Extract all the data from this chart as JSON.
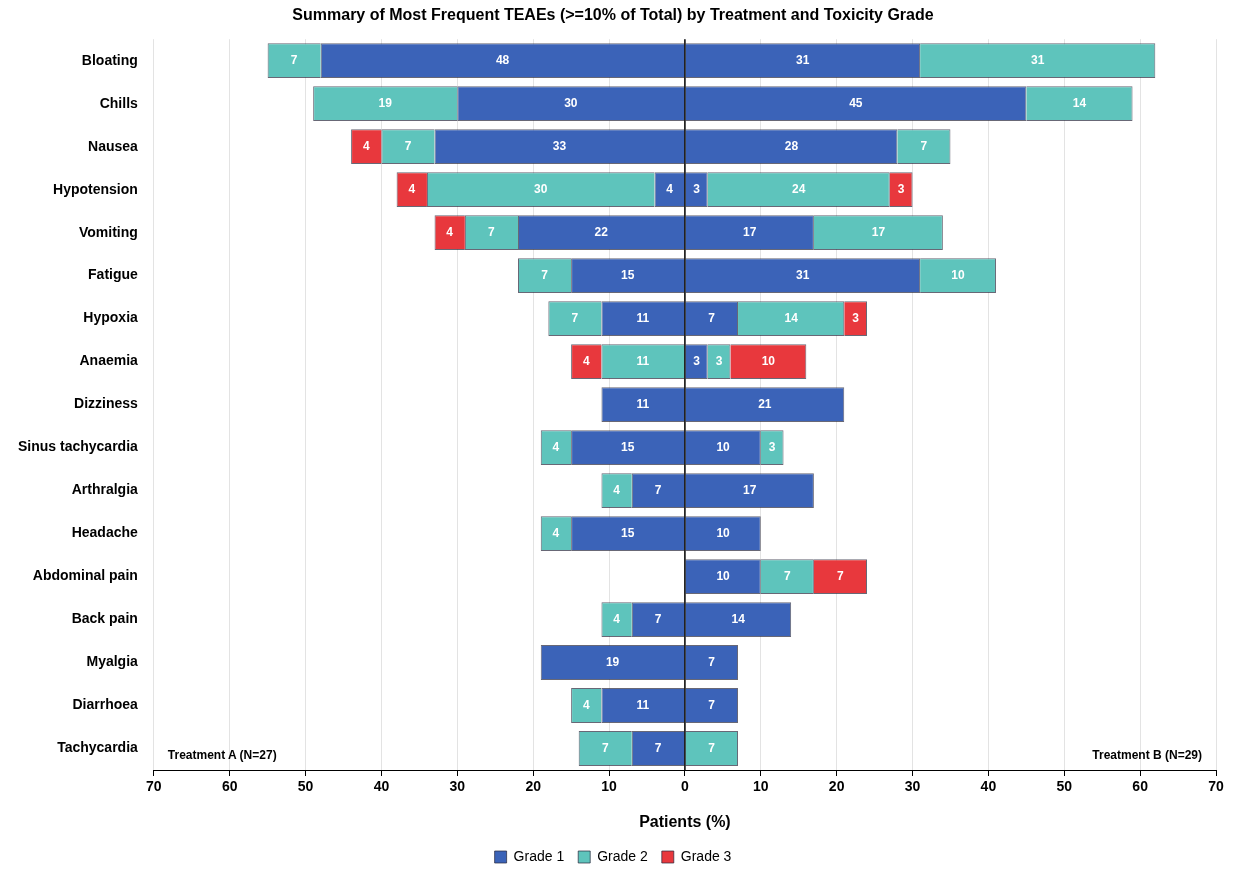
{
  "chart_data": {
    "type": "bar",
    "orientation": "horizontal",
    "title": "Summary of Most Frequent TEAEs (>=10% of Total) by Treatment and Toxicity Grade",
    "xlabel": "Patients (%)",
    "categories": [
      "Bloating",
      "Chills",
      "Nausea",
      "Hypotension",
      "Vomiting",
      "Fatigue",
      "Hypoxia",
      "Anaemia",
      "Dizziness",
      "Sinus tachycardia",
      "Arthralgia",
      "Headache",
      "Abdominal pain",
      "Back pain",
      "Myalgia",
      "Diarrhoea",
      "Tachycardia"
    ],
    "series": [
      {
        "name": "Grade 1",
        "color": "#3b63b8",
        "values": [
          48,
          30,
          33,
          4,
          22,
          15,
          11,
          null,
          11,
          15,
          7,
          15,
          null,
          7,
          19,
          11,
          7
        ],
        "base": [
          -48,
          -30,
          -33,
          -4,
          -22,
          -15,
          -11,
          null,
          -11,
          -15,
          -7,
          -15,
          null,
          -7,
          -19,
          -11,
          -7
        ]
      },
      {
        "name": "Grade 2",
        "color": "#5ec4bc",
        "values": [
          7,
          19,
          7,
          30,
          7,
          7,
          7,
          11,
          null,
          4,
          4,
          4,
          null,
          4,
          null,
          4,
          7
        ],
        "base": [
          -55,
          -49,
          -40,
          -34,
          -29,
          -22,
          -18,
          -11,
          null,
          -19,
          -11,
          -19,
          null,
          -11,
          null,
          -15,
          -14
        ]
      },
      {
        "name": "Grade 3",
        "color": "#e8383d",
        "values": [
          null,
          null,
          4,
          4,
          4,
          null,
          null,
          4,
          null,
          null,
          null,
          null,
          null,
          null,
          null,
          null,
          null
        ],
        "base": [
          null,
          null,
          -44,
          -38,
          -33,
          null,
          null,
          -15,
          null,
          null,
          null,
          null,
          null,
          null,
          null,
          null,
          null
        ]
      },
      {
        "color": "#3b63b8",
        "values": [
          31,
          45,
          28,
          3,
          17,
          31,
          7,
          3,
          21,
          10,
          17,
          10,
          10,
          14,
          7,
          7,
          null
        ],
        "base": [
          0,
          0,
          0,
          0,
          0,
          0,
          0,
          0,
          0,
          0,
          0,
          0,
          0,
          0,
          0,
          0,
          null
        ]
      },
      {
        "color": "#5ec4bc",
        "values": [
          31,
          14,
          7,
          24,
          17,
          10,
          14,
          3,
          null,
          3,
          null,
          null,
          7,
          null,
          null,
          null,
          7
        ],
        "base": [
          31,
          45,
          28,
          3,
          17,
          31,
          7,
          3,
          null,
          10,
          null,
          null,
          10,
          null,
          null,
          null,
          0
        ]
      },
      {
        "color": "#e8383d",
        "values": [
          null,
          null,
          null,
          3,
          null,
          null,
          3,
          10,
          null,
          null,
          null,
          null,
          7,
          null,
          null,
          null,
          null
        ],
        "base": [
          null,
          null,
          null,
          27,
          null,
          null,
          21,
          6,
          null,
          null,
          null,
          null,
          17,
          null,
          null,
          null,
          null
        ]
      }
    ],
    "xlim": [
      -70,
      70
    ],
    "xticks": [
      {
        "value": -70,
        "label": "70"
      },
      {
        "value": -60,
        "label": "60"
      },
      {
        "value": -50,
        "label": "50"
      },
      {
        "value": -40,
        "label": "40"
      },
      {
        "value": -30,
        "label": "30"
      },
      {
        "value": -20,
        "label": "20"
      },
      {
        "value": -10,
        "label": "10"
      },
      0,
      10,
      20,
      30,
      40,
      50,
      60,
      70
    ],
    "ref_lines": [
      {
        "axis": "x",
        "value": 0,
        "color": "#000000"
      }
    ],
    "annotations": [
      "Treatment A (N=27)",
      "Treatment B (N=29)"
    ],
    "data_labels": true,
    "grid": "x",
    "legend": "bottom"
  }
}
